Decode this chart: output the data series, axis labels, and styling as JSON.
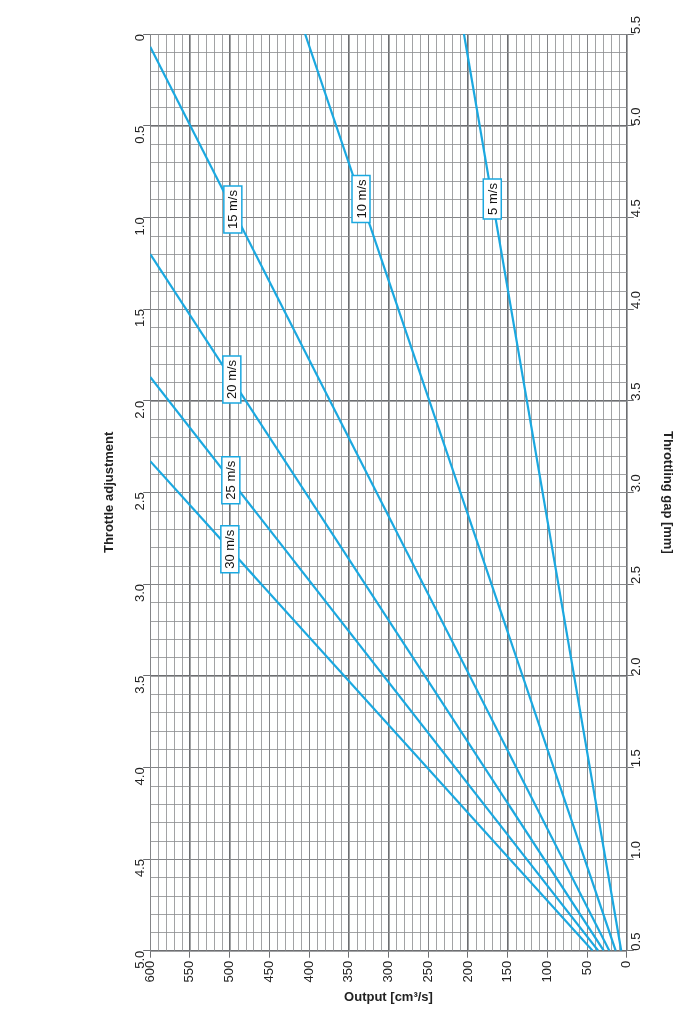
{
  "chart_data": {
    "type": "line",
    "xlabel": "Output [cm³/s]",
    "ylabel": "Throttle adjustment",
    "y2label": "Throttling gap [mm]",
    "xlim": [
      600,
      0
    ],
    "xticks": [
      0,
      50,
      100,
      150,
      200,
      250,
      300,
      350,
      400,
      450,
      500,
      550,
      600
    ],
    "ylim": [
      5,
      0
    ],
    "yticks": [
      0,
      {
        "value": 0.5,
        "label": "0.5"
      },
      {
        "value": 1,
        "label": "1.0"
      },
      {
        "value": 1.5,
        "label": "1.5"
      },
      {
        "value": 2,
        "label": "2.0"
      },
      {
        "value": 2.5,
        "label": "2.5"
      },
      {
        "value": 3,
        "label": "3.0"
      },
      {
        "value": 3.5,
        "label": "3.5"
      },
      {
        "value": 4,
        "label": "4.0"
      },
      {
        "value": 4.5,
        "label": "4.5"
      },
      {
        "value": 5,
        "label": "5.0"
      }
    ],
    "y2lim": [
      0.5,
      5.5
    ],
    "y2ticks": [
      0.5,
      {
        "value": 1,
        "label": "1.0"
      },
      1.5,
      {
        "value": 2,
        "label": "2.0"
      },
      2.5,
      {
        "value": 3,
        "label": "3.0"
      },
      3.5,
      {
        "value": 4,
        "label": "4.0"
      },
      4.5,
      {
        "value": 5,
        "label": "5.0"
      },
      5.5
    ],
    "grid": true,
    "legend": false,
    "marker": "none",
    "line_style": "solid",
    "series": [
      {
        "name": "30 m/s",
        "color": "#1ba8e0",
        "x": [
          43,
          600
        ],
        "values": [
          5,
          2.33
        ]
      },
      {
        "name": "25 m/s",
        "color": "#1ba8e0",
        "x": [
          36,
          600
        ],
        "values": [
          5,
          1.87
        ]
      },
      {
        "name": "20 m/s",
        "color": "#1ba8e0",
        "x": [
          29,
          600
        ],
        "values": [
          5,
          1.2
        ]
      },
      {
        "name": "15 m/s",
        "color": "#1ba8e0",
        "x": [
          22,
          600
        ],
        "values": [
          5,
          0.07
        ]
      },
      {
        "name": "10 m/s",
        "color": "#1ba8e0",
        "x": [
          14,
          405
        ],
        "values": [
          5,
          0
        ]
      },
      {
        "name": "5 m/s",
        "color": "#1ba8e0",
        "x": [
          7,
          205
        ],
        "values": [
          5,
          0
        ]
      }
    ]
  }
}
